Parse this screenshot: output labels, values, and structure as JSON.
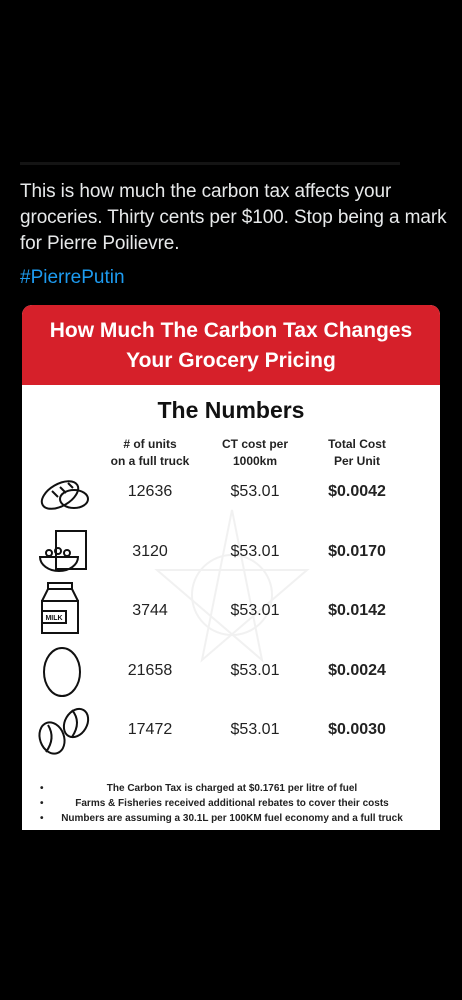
{
  "tweet": {
    "text": "This is how much the carbon tax affects your groceries. Thirty cents per $100. Stop being a mark for Pierre Poilievre.",
    "hashtag": "#PierrePutin"
  },
  "card": {
    "header": [
      "How Much The Carbon Tax Changes",
      "Your Grocery Pricing"
    ],
    "title": "The Numbers",
    "columns": [
      [
        "# of units",
        "on a full truck"
      ],
      [
        "CT cost per",
        "1000km"
      ],
      [
        "Total Cost",
        "Per Unit"
      ]
    ],
    "rows": [
      {
        "units": 12636,
        "cost": "$53.01",
        "total": "$0.0042"
      },
      {
        "units": 3120,
        "cost": "$53.01",
        "total": "$0.0170"
      },
      {
        "units": 3744,
        "cost": "$53.01",
        "total": "$0.0142"
      },
      {
        "units": 21658,
        "cost": "$53.01",
        "total": "$0.0024"
      },
      {
        "units": 17472,
        "cost": "$53.01",
        "total": "$0.0030"
      }
    ],
    "milk_label": "MILK",
    "notes": [
      "The Carbon Tax is charged at $0.1761 per litre of fuel",
      "Farms & Fisheries received additional rebates to cover their costs",
      "Numbers are assuming a 30.1L per 100KM fuel economy and a full truck"
    ]
  }
}
